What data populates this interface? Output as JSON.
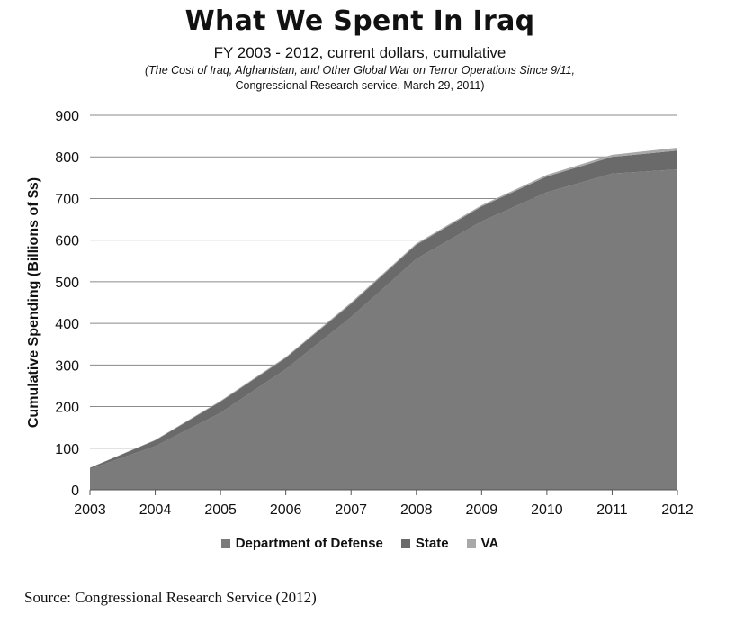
{
  "header": {
    "title": "What We Spent In Iraq",
    "subtitle": "FY 2003 - 2012, current dollars, cumulative",
    "source_line1": "(The Cost of Iraq, Afghanistan, and Other Global War on Terror Operations Since 9/11,",
    "source_line2": "Congressional Research service, March 29, 2011)"
  },
  "chart_data": {
    "type": "area",
    "stacked": true,
    "title": "What We Spent In Iraq",
    "subtitle": "FY 2003 - 2012, current dollars, cumulative",
    "xlabel": "",
    "ylabel": "Cumulative Spending (Billions of $s)",
    "x": [
      "2003",
      "2004",
      "2005",
      "2006",
      "2007",
      "2008",
      "2009",
      "2010",
      "2011",
      "2012"
    ],
    "ylim": [
      0,
      900
    ],
    "yticks": [
      "0",
      "100",
      "200",
      "300",
      "400",
      "500",
      "600",
      "700",
      "800",
      "900"
    ],
    "grid": true,
    "legend_position": "bottom",
    "series": [
      {
        "name": "Department of Defense",
        "color": "#7b7b7b",
        "values": [
          50,
          105,
          185,
          290,
          415,
          555,
          645,
          715,
          760,
          770
        ]
      },
      {
        "name": "State",
        "color": "#6a6a6a",
        "values": [
          3,
          14,
          27,
          27,
          32,
          34,
          36,
          38,
          40,
          45
        ]
      },
      {
        "name": "VA",
        "color": "#a9a9a9",
        "values": [
          0,
          1,
          2,
          2,
          3,
          3,
          3,
          4,
          5,
          7
        ]
      }
    ]
  },
  "footer": {
    "source": "Source: Congressional Research Service (2012)"
  }
}
